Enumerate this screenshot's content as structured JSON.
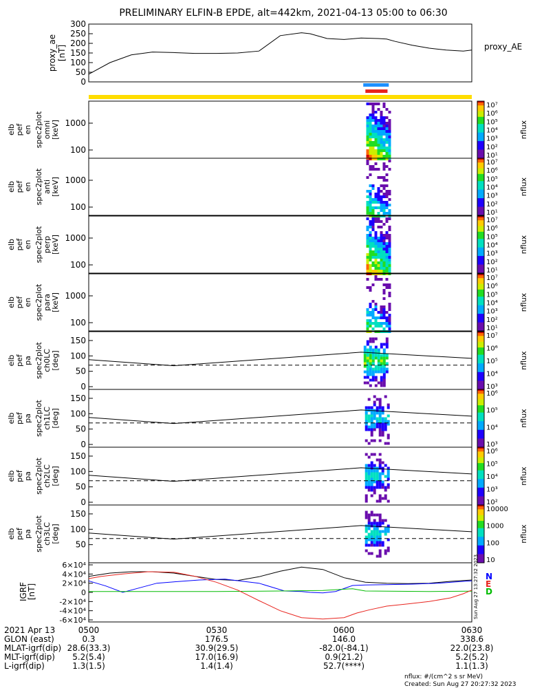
{
  "title": "PRELIMINARY ELFIN-B EPDE, alt=442km, 2021-04-13 05:00 to 06:30",
  "proxy_ae": {
    "ylabel": [
      "proxy_ae",
      "[nT]"
    ],
    "legend": "proxy_AE",
    "ticks": [
      "300",
      "250",
      "200",
      "150",
      "100",
      "50",
      "0"
    ],
    "chart_data": {
      "type": "line",
      "title": "proxy_ae",
      "ylabel": "proxy_ae [nT]",
      "ylim": [
        0,
        300
      ],
      "x_minutes": [
        0,
        5,
        10,
        15,
        20,
        25,
        30,
        35,
        40,
        45,
        50,
        52,
        56,
        60,
        64,
        68,
        70,
        72,
        76,
        80,
        84,
        88,
        90
      ],
      "values": [
        40,
        100,
        140,
        155,
        152,
        148,
        148,
        150,
        160,
        240,
        255,
        250,
        225,
        220,
        228,
        225,
        222,
        210,
        190,
        175,
        165,
        160,
        165
      ]
    }
  },
  "indicator_bars": {
    "colors": {
      "yellow": "#ffdd00",
      "blue": "#1e90ff",
      "red": "#e8231d"
    },
    "chart_data": {
      "type": "bar",
      "segments": [
        {
          "name": "yellow",
          "start_min": 0,
          "end_min": 90
        },
        {
          "name": "blue",
          "start_min": 64.5,
          "end_min": 70.5
        },
        {
          "name": "red",
          "start_min": 65,
          "end_min": 70.2
        }
      ]
    }
  },
  "energy_panels": [
    {
      "label": [
        "elb",
        "pef",
        "en",
        "spec2plot",
        "omni",
        "[keV]"
      ],
      "ticks": [
        "1000",
        "100"
      ],
      "cbar_ticks": [
        "10⁷",
        "10⁶",
        "10⁵",
        "10⁴",
        "10³",
        "10²",
        "10¹"
      ],
      "cbar_label": "nflux"
    },
    {
      "label": [
        "elb",
        "pef",
        "en",
        "spec2plot",
        "anti",
        "[keV]"
      ],
      "ticks": [
        "1000",
        "100"
      ],
      "cbar_ticks": [
        "10⁷",
        "10⁶",
        "10⁵",
        "10⁴",
        "10³",
        "10²",
        "10¹"
      ],
      "cbar_label": "nflux"
    },
    {
      "label": [
        "elb",
        "pef",
        "en",
        "spec2plot",
        "perp",
        "[keV]"
      ],
      "ticks": [
        "1000",
        "100"
      ],
      "cbar_ticks": [
        "10⁷",
        "10⁶",
        "10⁵",
        "10⁴",
        "10³",
        "10²",
        "10¹"
      ],
      "cbar_label": "nflux"
    },
    {
      "label": [
        "elb",
        "pef",
        "en",
        "spec2plot",
        "para",
        "[keV]"
      ],
      "ticks": [
        "1000",
        "100"
      ],
      "cbar_ticks": [
        "10⁷",
        "10⁶",
        "10⁵",
        "10⁴",
        "10³",
        "10²",
        "10¹"
      ],
      "cbar_label": "nflux"
    }
  ],
  "pitch_panels": [
    {
      "label": [
        "elb",
        "pef",
        "pa",
        "spec2plot",
        "ch0LC",
        "[deg]"
      ],
      "ticks": [
        "150",
        "100",
        "50",
        "0"
      ],
      "cbar_ticks": [
        "10⁷",
        "10⁶",
        "10⁵",
        "10⁴",
        "10³"
      ],
      "cbar_label": "nflux"
    },
    {
      "label": [
        "elb",
        "pef",
        "pa",
        "spec2plot",
        "ch1LC",
        "[deg]"
      ],
      "ticks": [
        "150",
        "100",
        "50",
        "0"
      ],
      "cbar_ticks": [
        "10⁶",
        "10⁵",
        "10⁴",
        "10³"
      ],
      "cbar_label": "nflux"
    },
    {
      "label": [
        "elb",
        "pef",
        "pa",
        "spec2plot",
        "ch2LC",
        "[deg]"
      ],
      "ticks": [
        "150",
        "100",
        "50",
        "0"
      ],
      "cbar_ticks": [
        "10⁶",
        "10⁵",
        "10⁴",
        "10³",
        "10²"
      ],
      "cbar_label": "nflux"
    },
    {
      "label": [
        "elb",
        "pef",
        "pa",
        "spec2plot",
        "ch3LC",
        "[deg]"
      ],
      "ticks": [
        "150",
        "100",
        "50"
      ],
      "cbar_ticks": [
        "10000",
        "1000",
        "100",
        "10"
      ],
      "cbar_label": "nflux"
    }
  ],
  "pa_lines": {
    "chart_data": {
      "type": "line",
      "x_minutes": [
        0,
        20,
        64,
        90
      ],
      "solid_deg": [
        88,
        68,
        112,
        92
      ],
      "dashed_deg": 70
    }
  },
  "igrf": {
    "ylabel": [
      "IGRF",
      "[nT]"
    ],
    "ticks": [
      "6×10⁴",
      "4×10⁴",
      "2×10⁴",
      "0",
      "-2×10⁴",
      "-4×10⁴",
      "-6×10⁴"
    ],
    "legend": [
      "N",
      "E",
      "D"
    ],
    "colors": {
      "N": "#000000",
      "E": "#0000ff",
      "D": "#e8231d",
      "green": "#00bb00"
    },
    "stamp": "Sun Aug 27 13:27:32 2023",
    "chart_data": {
      "type": "line",
      "ylim": [
        -60000,
        60000
      ],
      "series": [
        {
          "name": "black",
          "x": [
            0,
            5,
            10,
            15,
            20,
            25,
            30,
            35,
            40,
            45,
            50,
            55,
            60,
            65,
            70,
            75,
            80,
            85,
            90
          ],
          "values": [
            35000,
            42000,
            45000,
            45000,
            42000,
            35000,
            28000,
            26000,
            34000,
            46000,
            55000,
            50000,
            32000,
            22000,
            20000,
            19000,
            20000,
            24000,
            27000
          ]
        },
        {
          "name": "blue",
          "x": [
            0,
            4,
            8,
            12,
            16,
            20,
            26,
            32,
            40,
            46,
            50,
            52,
            55,
            58,
            62,
            65,
            70,
            76,
            82,
            88,
            90
          ],
          "values": [
            25000,
            14000,
            0,
            10000,
            20000,
            23000,
            27000,
            29000,
            20000,
            3000,
            2000,
            0,
            -1000,
            2000,
            15000,
            16000,
            17000,
            18000,
            20000,
            24000,
            25000
          ]
        },
        {
          "name": "green",
          "x": [
            0,
            15,
            30,
            45,
            55,
            62,
            65,
            70,
            80,
            90
          ],
          "values": [
            2000,
            2000,
            2000,
            3000,
            4000,
            8000,
            3000,
            2500,
            2000,
            2500
          ]
        },
        {
          "name": "red",
          "x": [
            0,
            3,
            8,
            14,
            20,
            25,
            30,
            35,
            40,
            45,
            50,
            55,
            60,
            63,
            66,
            70,
            75,
            80,
            85,
            88,
            90
          ],
          "values": [
            30000,
            35000,
            40000,
            45000,
            44000,
            35000,
            22000,
            5000,
            -18000,
            -40000,
            -55000,
            -58000,
            -55000,
            -45000,
            -38000,
            -30000,
            -25000,
            -20000,
            -12000,
            -3000,
            5000
          ]
        }
      ]
    }
  },
  "footer": {
    "row_labels": [
      "2021 Apr 13",
      "GLON (east)",
      "MLAT-igrf(dip)",
      "MLT-igrf(dip)",
      "L-igrf(dip)"
    ],
    "columns": [
      {
        "time": "0500",
        "values": [
          "0.3",
          "28.6(33.3)",
          "5.2(5.4)",
          "1.3(1.5)"
        ]
      },
      {
        "time": "0530",
        "values": [
          "176.5",
          "30.9(29.5)",
          "17.0(16.9)",
          "1.4(1.4)"
        ]
      },
      {
        "time": "0600",
        "values": [
          "146.0",
          "-82.0(-84.1)",
          "0.9(21.2)",
          "52.7(****)"
        ]
      },
      {
        "time": "0630",
        "values": [
          "338.6",
          "22.0(23.8)",
          "5.2(5.2)",
          "1.1(1.3)"
        ]
      }
    ],
    "units_note": "nflux: #/(cm^2 s sr MeV)",
    "created": "Created: Sun Aug 27 20:27:32 2023"
  }
}
